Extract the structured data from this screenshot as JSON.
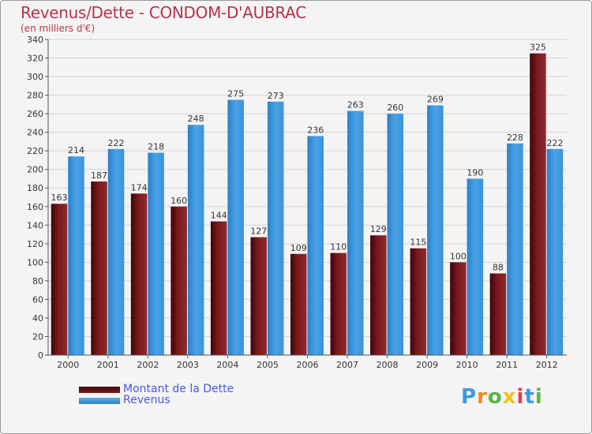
{
  "header": {
    "title": "Revenus/Dette - CONDOM-D'AUBRAC",
    "subtitle": "(en milliers d'€)"
  },
  "logo_text": "Proxiti",
  "colors": {
    "debt": "#7a1a1e",
    "revenue": "#3d98e0",
    "title": "#b5334d",
    "legend_text": "#4a59e0"
  },
  "legend": {
    "debt_label": "Montant de la Dette",
    "revenue_label": "Revenus"
  },
  "chart_data": {
    "type": "bar",
    "title": "Revenus/Dette - CONDOM-D'AUBRAC",
    "ylabel": "(en milliers d'€)",
    "categories": [
      "2000",
      "2001",
      "2002",
      "2003",
      "2004",
      "2005",
      "2006",
      "2007",
      "2008",
      "2009",
      "2010",
      "2011",
      "2012"
    ],
    "series": [
      {
        "name": "Montant de la Dette",
        "values": [
          163,
          187,
          174,
          160,
          144,
          127,
          109,
          110,
          129,
          115,
          100,
          88,
          325
        ]
      },
      {
        "name": "Revenus",
        "values": [
          214,
          222,
          218,
          248,
          275,
          273,
          236,
          263,
          260,
          269,
          190,
          228,
          222
        ]
      }
    ],
    "ylim": [
      0,
      340
    ],
    "yticks": [
      0,
      20,
      40,
      60,
      80,
      100,
      120,
      140,
      160,
      180,
      200,
      220,
      240,
      260,
      280,
      300,
      320,
      340
    ],
    "grid": true,
    "legend_position": "bottom-left"
  }
}
